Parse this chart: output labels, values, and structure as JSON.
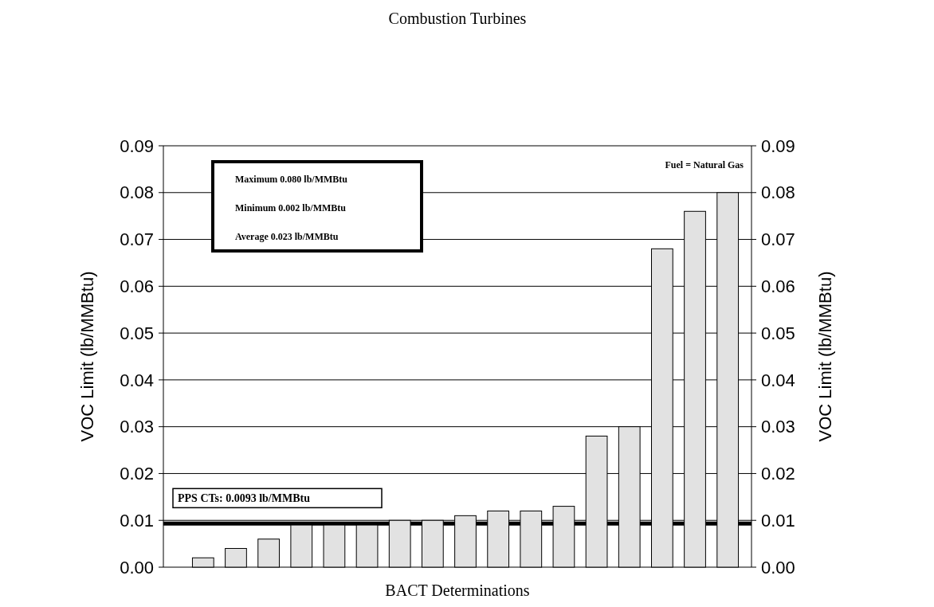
{
  "chart_data": {
    "type": "bar",
    "title": "Combustion Turbines",
    "xlabel": "BACT Determinations",
    "ylabel": "VOC Limit (lb/MMBtu)",
    "y2label": "VOC Limit (lb/MMBtu)",
    "categories": [
      null,
      null,
      null,
      null,
      null,
      null,
      null,
      null,
      null,
      null,
      null,
      null,
      null,
      null,
      null,
      null,
      null
    ],
    "values": [
      0.002,
      0.004,
      0.006,
      0.009,
      0.009,
      0.009,
      0.01,
      0.01,
      0.011,
      0.012,
      0.012,
      0.013,
      0.028,
      0.03,
      0.068,
      0.076,
      0.08
    ],
    "color": "#e2e2e2",
    "ylim": [
      0,
      0.09
    ],
    "yticks": [
      {
        "value": 0,
        "label": "0.00"
      },
      0.01,
      0.02,
      0.03,
      0.04,
      0.05,
      0.06,
      0.07,
      0.08,
      0.09
    ],
    "y2lim": [
      0,
      0.09
    ],
    "y2ticks": [
      {
        "value": 0,
        "label": "0.00"
      },
      0.01,
      0.02,
      0.03,
      0.04,
      0.05,
      0.06,
      0.07,
      0.08,
      0.09
    ],
    "grid": "y",
    "ref_lines": [
      {
        "axis": "y",
        "value": 0.0093,
        "label": "PPS CTs: 0.0093 lb/MMBtu",
        "color": "#000000"
      }
    ],
    "annotations": [
      "Fuel = Natural Gas",
      "Maximum 0.080 lb/MMBtu",
      "Minimum 0.002 lb/MMBtu",
      "Average 0.023 lb/MMBtu"
    ]
  }
}
